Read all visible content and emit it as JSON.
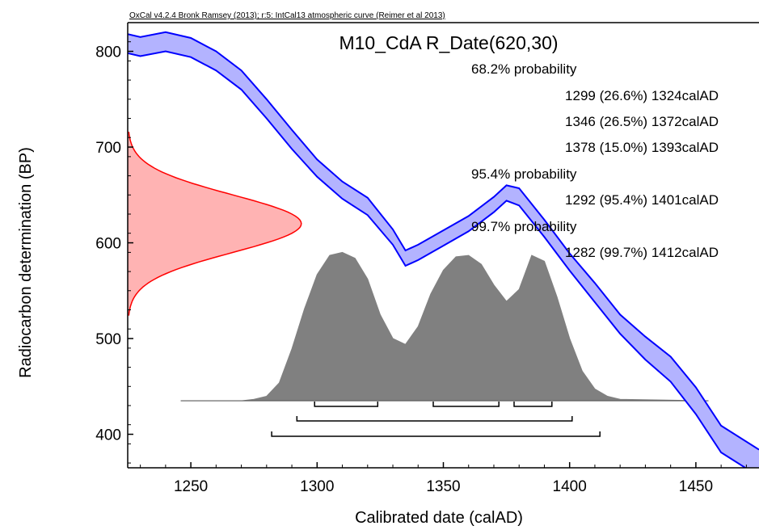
{
  "header_text": "OxCal v4.2.4 Bronk Ramsey (2013); r:5: IntCal13 atmospheric curve (Reimer et al 2013)",
  "chart_data": {
    "type": "area",
    "title": "M10_CdA R_Date(620,30)",
    "xlabel": "Calibrated date (calAD)",
    "ylabel": "Radiocarbon determination (BP)",
    "xlim": [
      1225,
      1475
    ],
    "ylim": [
      365,
      830
    ],
    "xticks": [
      1250,
      1300,
      1350,
      1400,
      1450
    ],
    "yticks": [
      400,
      500,
      600,
      700,
      800
    ],
    "grid": false,
    "colors": {
      "calibration_curve": "#0000ff",
      "calibration_fill": "#b3b3ff",
      "measurement": "#ff0000",
      "measurement_fill": "#ffb3b3",
      "posterior": "#555555",
      "posterior_fill": "#808080"
    },
    "measurement": {
      "mean_bp": 620,
      "sigma": 30
    },
    "calibration_curve": {
      "x": [
        1225,
        1230,
        1240,
        1250,
        1260,
        1270,
        1280,
        1290,
        1300,
        1310,
        1320,
        1330,
        1335,
        1340,
        1350,
        1360,
        1370,
        1375,
        1380,
        1390,
        1400,
        1410,
        1420,
        1430,
        1440,
        1450,
        1460,
        1475
      ],
      "center": [
        808,
        805,
        810,
        804,
        790,
        770,
        740,
        708,
        678,
        655,
        638,
        606,
        584,
        590,
        605,
        620,
        640,
        652,
        648,
        615,
        580,
        548,
        515,
        490,
        468,
        435,
        395,
        370
      ],
      "half_width": [
        10,
        10,
        10,
        10,
        10,
        10,
        10,
        10,
        9,
        9,
        9,
        8,
        8,
        8,
        8,
        8,
        8,
        8,
        9,
        9,
        9,
        10,
        10,
        12,
        13,
        14,
        14,
        14
      ]
    },
    "posterior": {
      "baseline_bp": 435,
      "max_height_bp": 155,
      "x": [
        1246,
        1270,
        1275,
        1280,
        1285,
        1290,
        1295,
        1300,
        1305,
        1310,
        1315,
        1320,
        1325,
        1330,
        1335,
        1340,
        1345,
        1350,
        1355,
        1360,
        1365,
        1370,
        1375,
        1380,
        1385,
        1390,
        1395,
        1400,
        1405,
        1410,
        1415,
        1420,
        1455
      ],
      "density": [
        0,
        0,
        0.01,
        0.03,
        0.12,
        0.35,
        0.62,
        0.85,
        0.98,
        1.0,
        0.96,
        0.82,
        0.58,
        0.42,
        0.38,
        0.5,
        0.72,
        0.88,
        0.97,
        0.98,
        0.92,
        0.78,
        0.67,
        0.75,
        0.98,
        0.94,
        0.7,
        0.42,
        0.2,
        0.08,
        0.03,
        0.01,
        0
      ]
    },
    "probability_bars": [
      {
        "level": "68.2%",
        "ranges": [
          [
            1299,
            1324
          ],
          [
            1346,
            1372
          ],
          [
            1378,
            1393
          ]
        ]
      },
      {
        "level": "95.4%",
        "ranges": [
          [
            1292,
            1401
          ]
        ]
      },
      {
        "level": "99.7%",
        "ranges": [
          [
            1282,
            1412
          ]
        ]
      }
    ],
    "annotations": [
      "68.2% probability",
      "1299 (26.6%) 1324calAD",
      "1346 (26.5%) 1372calAD",
      "1378 (15.0%) 1393calAD",
      "95.4% probability",
      "1292 (95.4%) 1401calAD",
      "99.7% probability",
      "1282 (99.7%) 1412calAD"
    ]
  }
}
